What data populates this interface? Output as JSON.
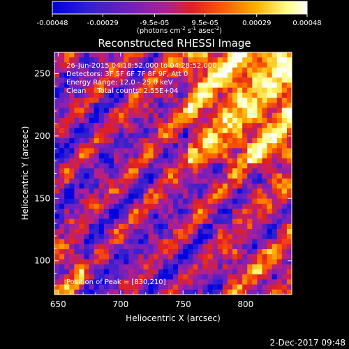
{
  "colorbar": {
    "tick_labels": [
      "-0.00048",
      "-0.00029",
      "-9.5e-05",
      "9.5e-05",
      "0.00029",
      "0.00048"
    ],
    "tick_values": [
      -0.00048,
      -0.00029,
      -9.5e-05,
      9.5e-05,
      0.00029,
      0.00048
    ],
    "range": [
      -0.00048,
      0.00048
    ],
    "units_main": "(photons cm",
    "units_exp1": "-2",
    "units_s": " s",
    "units_exp2": "-1",
    "units_asec": " asec",
    "units_exp3": "-2",
    "units_close": ")",
    "colors": [
      "#0000e0",
      "#3020d0",
      "#7020c0",
      "#b02090",
      "#e02020",
      "#ff6000",
      "#ffb000",
      "#ffff80",
      "#ffffff"
    ]
  },
  "chart_data": {
    "type": "heatmap",
    "title": "Reconstructed RHESSI Image",
    "xlabel": "Heliocentric X (arcsec)",
    "ylabel": "Heliocentric Y (arcsec)",
    "xlim": [
      647,
      837
    ],
    "ylim": [
      73,
      267
    ],
    "x_ticks": [
      650,
      700,
      750,
      800
    ],
    "y_ticks": [
      100,
      150,
      200,
      250
    ],
    "x_tick_labels": [
      "650",
      "700",
      "750",
      "800"
    ],
    "y_tick_labels": [
      "100",
      "150",
      "200",
      "250"
    ],
    "peak": [
      830,
      210
    ],
    "annotations": [
      "26-Jun-2015 04:18:52.000 to 04:28:52.000",
      "Detectors: 3F 5F 6F 7F 8F 9F, Att 0",
      "Energy Range: 12.0 - 25.0 keV",
      "Clean     Total counts: 2.55E+04"
    ],
    "peak_label": "Position of Peak = [830,210]"
  },
  "footer": {
    "timestamp": "2-Dec-2017 09:48"
  }
}
